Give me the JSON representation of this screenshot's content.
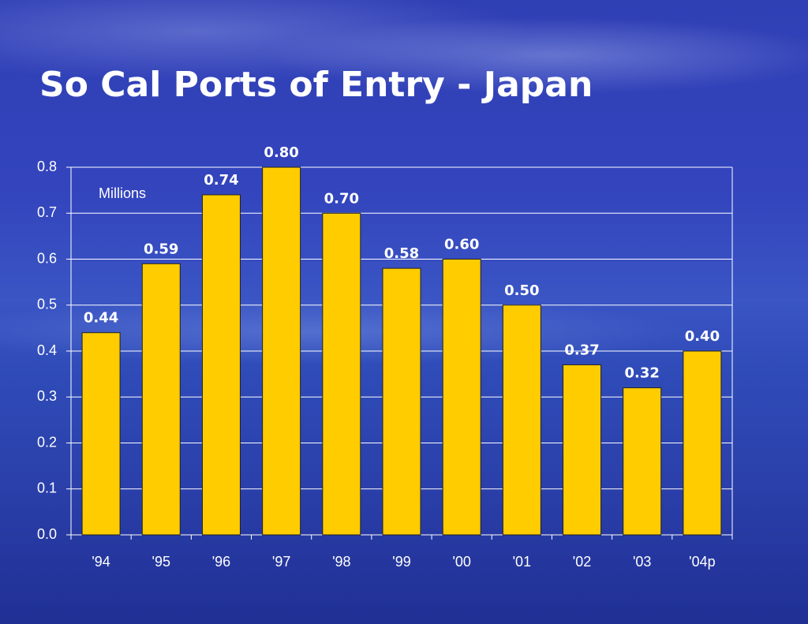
{
  "chart_data": {
    "type": "bar",
    "title": "So Cal Ports of Entry - Japan",
    "annotation": "Millions",
    "categories": [
      "'94",
      "'95",
      "'96",
      "'97",
      "'98",
      "'99",
      "'00",
      "'01",
      "'02",
      "'03",
      "'04p"
    ],
    "values": [
      0.44,
      0.59,
      0.74,
      0.8,
      0.7,
      0.58,
      0.6,
      0.5,
      0.37,
      0.32,
      0.4
    ],
    "value_labels": [
      "0.44",
      "0.59",
      "0.74",
      "0.80",
      "0.70",
      "0.58",
      "0.60",
      "0.50",
      "0.37",
      "0.32",
      "0.40"
    ],
    "color": "#ffcc00",
    "ylim": [
      0,
      0.8
    ],
    "yticks": [
      {
        "value": 0,
        "label": "0.0"
      },
      0.1,
      0.2,
      0.3,
      0.4,
      0.5,
      0.6,
      0.7,
      0.8
    ],
    "grid": true
  }
}
